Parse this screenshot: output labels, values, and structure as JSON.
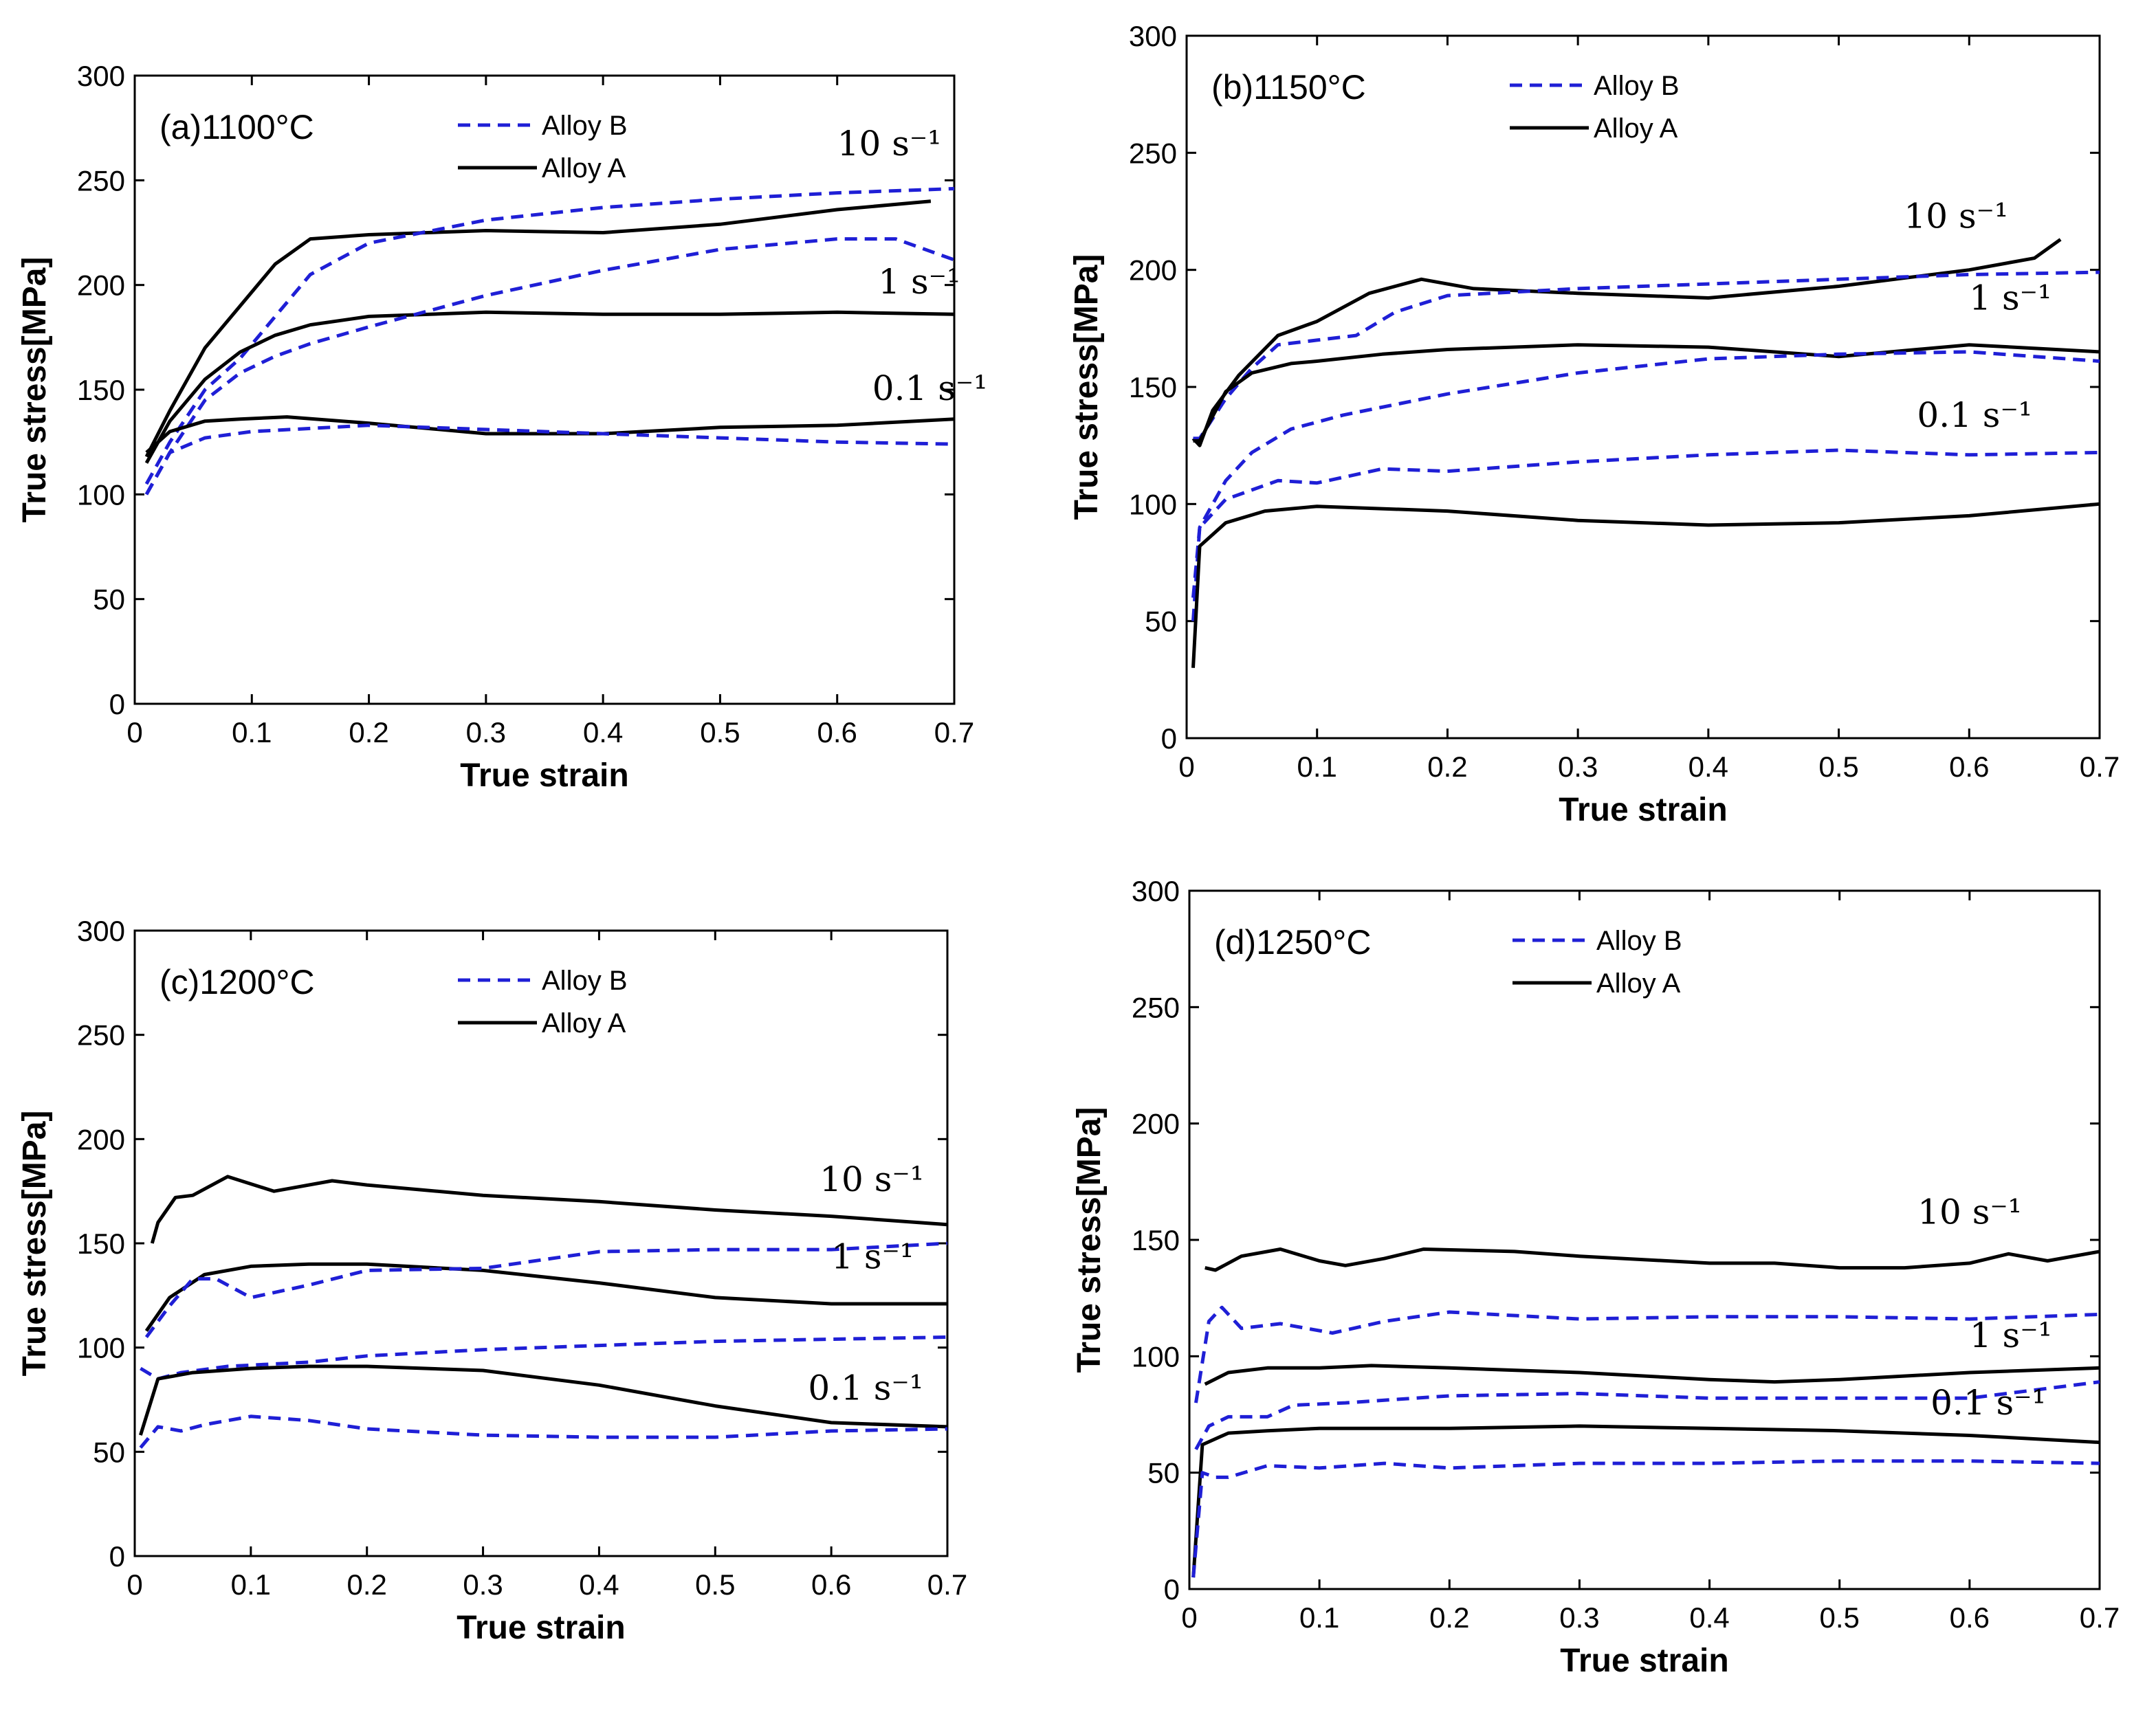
{
  "chart_data": [
    {
      "type": "line",
      "title": "(a)1100°C",
      "xlabel": "True strain",
      "ylabel": "True stress[MPa]",
      "xlim": [
        0,
        0.7
      ],
      "ylim": [
        0,
        300
      ],
      "xticks": [
        "0",
        "0.1",
        "0.2",
        "0.3",
        "0.4",
        "0.5",
        "0.6",
        "0.7"
      ],
      "yticks": [
        "0",
        "50",
        "100",
        "150",
        "200",
        "250",
        "300"
      ],
      "legend": [
        {
          "name": "Alloy B",
          "style": "dashed",
          "color": "#1f1fd6"
        },
        {
          "name": "Alloy A",
          "style": "solid",
          "color": "#000000"
        }
      ],
      "rate_labels": [
        {
          "text": "10 s⁻¹",
          "x": 0.6,
          "y": 262
        },
        {
          "text": "1 s⁻¹",
          "x": 0.635,
          "y": 196
        },
        {
          "text": "0.1 s⁻¹",
          "x": 0.63,
          "y": 145
        }
      ],
      "series": [
        {
          "name": "Alloy A",
          "rate": "10 s⁻¹",
          "x": [
            0.01,
            0.03,
            0.06,
            0.09,
            0.12,
            0.15,
            0.2,
            0.3,
            0.4,
            0.5,
            0.6,
            0.68
          ],
          "y": [
            118,
            140,
            170,
            190,
            210,
            222,
            224,
            226,
            225,
            229,
            236,
            240
          ]
        },
        {
          "name": "Alloy B",
          "rate": "10 s⁻¹",
          "x": [
            0.01,
            0.03,
            0.06,
            0.09,
            0.12,
            0.15,
            0.2,
            0.3,
            0.4,
            0.5,
            0.6,
            0.7
          ],
          "y": [
            105,
            125,
            150,
            165,
            185,
            205,
            220,
            231,
            237,
            241,
            244,
            246
          ]
        },
        {
          "name": "Alloy A",
          "rate": "1 s⁻¹",
          "x": [
            0.01,
            0.03,
            0.06,
            0.09,
            0.12,
            0.15,
            0.2,
            0.3,
            0.4,
            0.5,
            0.6,
            0.7
          ],
          "y": [
            115,
            135,
            155,
            168,
            176,
            181,
            185,
            187,
            186,
            186,
            187,
            186
          ]
        },
        {
          "name": "Alloy B",
          "rate": "1 s⁻¹",
          "x": [
            0.01,
            0.03,
            0.06,
            0.09,
            0.12,
            0.15,
            0.2,
            0.3,
            0.4,
            0.5,
            0.6,
            0.65,
            0.7
          ],
          "y": [
            100,
            120,
            145,
            158,
            166,
            172,
            180,
            195,
            207,
            217,
            222,
            222,
            212
          ]
        },
        {
          "name": "Alloy A",
          "rate": "0.1 s⁻¹",
          "x": [
            0.01,
            0.03,
            0.06,
            0.09,
            0.13,
            0.2,
            0.3,
            0.4,
            0.5,
            0.6,
            0.7
          ],
          "y": [
            120,
            130,
            135,
            136,
            137,
            134,
            129,
            129,
            132,
            133,
            136
          ]
        },
        {
          "name": "Alloy B",
          "rate": "0.1 s⁻¹",
          "x": [
            0.01,
            0.03,
            0.06,
            0.1,
            0.2,
            0.3,
            0.4,
            0.5,
            0.6,
            0.7
          ],
          "y": [
            100,
            120,
            127,
            130,
            133,
            131,
            129,
            127,
            125,
            124
          ]
        }
      ]
    },
    {
      "type": "line",
      "title": "(b)1150°C",
      "xlabel": "True strain",
      "ylabel": "True stress[MPa]",
      "xlim": [
        0,
        0.7
      ],
      "ylim": [
        0,
        300
      ],
      "xticks": [
        "0",
        "0.1",
        "0.2",
        "0.3",
        "0.4",
        "0.5",
        "0.6",
        "0.7"
      ],
      "yticks": [
        "0",
        "50",
        "100",
        "150",
        "200",
        "250",
        "300"
      ],
      "legend": [
        {
          "name": "Alloy B",
          "style": "dashed",
          "color": "#1f1fd6"
        },
        {
          "name": "Alloy A",
          "style": "solid",
          "color": "#000000"
        }
      ],
      "rate_labels": [
        {
          "text": "10 s⁻¹",
          "x": 0.55,
          "y": 218
        },
        {
          "text": "1 s⁻¹",
          "x": 0.6,
          "y": 183
        },
        {
          "text": "0.1 s⁻¹",
          "x": 0.56,
          "y": 133
        }
      ],
      "series": [
        {
          "name": "Alloy A",
          "rate": "10 s⁻¹",
          "x": [
            0.005,
            0.01,
            0.02,
            0.04,
            0.07,
            0.1,
            0.14,
            0.18,
            0.22,
            0.3,
            0.4,
            0.5,
            0.6,
            0.65,
            0.67
          ],
          "y": [
            128,
            125,
            140,
            155,
            172,
            178,
            190,
            196,
            192,
            190,
            188,
            193,
            200,
            205,
            213
          ]
        },
        {
          "name": "Alloy B",
          "rate": "10 s⁻¹",
          "x": [
            0.005,
            0.01,
            0.03,
            0.05,
            0.07,
            0.1,
            0.13,
            0.16,
            0.2,
            0.3,
            0.4,
            0.5,
            0.6,
            0.7
          ],
          "y": [
            128,
            128,
            145,
            158,
            168,
            170,
            172,
            182,
            189,
            192,
            194,
            196,
            198,
            199
          ]
        },
        {
          "name": "Alloy A",
          "rate": "1 s⁻¹",
          "x": [
            0.005,
            0.01,
            0.03,
            0.05,
            0.08,
            0.1,
            0.15,
            0.2,
            0.3,
            0.4,
            0.5,
            0.6,
            0.7
          ],
          "y": [
            127,
            127,
            148,
            156,
            160,
            161,
            164,
            166,
            168,
            167,
            163,
            168,
            165
          ]
        },
        {
          "name": "Alloy B",
          "rate": "1 s⁻¹",
          "x": [
            0.005,
            0.01,
            0.03,
            0.05,
            0.08,
            0.12,
            0.2,
            0.3,
            0.4,
            0.5,
            0.6,
            0.7
          ],
          "y": [
            60,
            90,
            110,
            122,
            132,
            138,
            147,
            156,
            162,
            164,
            165,
            161
          ]
        },
        {
          "name": "Alloy B",
          "rate": "0.1 s⁻¹",
          "x": [
            0.005,
            0.01,
            0.03,
            0.05,
            0.07,
            0.1,
            0.15,
            0.2,
            0.3,
            0.4,
            0.5,
            0.6,
            0.7
          ],
          "y": [
            50,
            90,
            102,
            106,
            110,
            109,
            115,
            114,
            118,
            121,
            123,
            121,
            122
          ]
        },
        {
          "name": "Alloy A",
          "rate": "0.1 s⁻¹",
          "x": [
            0.005,
            0.01,
            0.03,
            0.06,
            0.1,
            0.2,
            0.3,
            0.4,
            0.5,
            0.6,
            0.7
          ],
          "y": [
            30,
            82,
            92,
            97,
            99,
            97,
            93,
            91,
            92,
            95,
            100
          ]
        }
      ]
    },
    {
      "type": "line",
      "title": "(c)1200°C",
      "xlabel": "True strain",
      "ylabel": "True stress[MPa]",
      "xlim": [
        0,
        0.7
      ],
      "ylim": [
        0,
        300
      ],
      "xticks": [
        "0",
        "0.1",
        "0.2",
        "0.3",
        "0.4",
        "0.5",
        "0.6",
        "0.7"
      ],
      "yticks": [
        "0",
        "50",
        "100",
        "150",
        "200",
        "250",
        "300"
      ],
      "legend": [
        {
          "name": "Alloy B",
          "style": "dashed",
          "color": "#1f1fd6"
        },
        {
          "name": "Alloy A",
          "style": "solid",
          "color": "#000000"
        }
      ],
      "rate_labels": [
        {
          "text": "10 s⁻¹",
          "x": 0.59,
          "y": 175
        },
        {
          "text": "1 s⁻¹",
          "x": 0.6,
          "y": 138
        },
        {
          "text": "0.1 s⁻¹",
          "x": 0.58,
          "y": 75
        }
      ],
      "series": [
        {
          "name": "Alloy A",
          "rate": "10 s⁻¹",
          "x": [
            0.015,
            0.02,
            0.035,
            0.05,
            0.08,
            0.12,
            0.17,
            0.2,
            0.3,
            0.4,
            0.5,
            0.6,
            0.7
          ],
          "y": [
            150,
            160,
            172,
            173,
            182,
            175,
            180,
            178,
            173,
            170,
            166,
            163,
            159
          ]
        },
        {
          "name": "Alloy A",
          "rate": "1 s⁻¹",
          "x": [
            0.01,
            0.03,
            0.06,
            0.1,
            0.15,
            0.2,
            0.3,
            0.4,
            0.5,
            0.6,
            0.7
          ],
          "y": [
            108,
            124,
            135,
            139,
            140,
            140,
            137,
            131,
            124,
            121,
            121
          ]
        },
        {
          "name": "Alloy B",
          "rate": "1 s⁻¹",
          "x": [
            0.01,
            0.03,
            0.05,
            0.07,
            0.1,
            0.15,
            0.2,
            0.3,
            0.4,
            0.5,
            0.6,
            0.7
          ],
          "y": [
            105,
            120,
            133,
            133,
            124,
            130,
            137,
            138,
            146,
            147,
            147,
            150
          ]
        },
        {
          "name": "Alloy B",
          "rate": "0.1 s⁻¹",
          "x": [
            0.005,
            0.02,
            0.04,
            0.08,
            0.15,
            0.2,
            0.3,
            0.4,
            0.5,
            0.6,
            0.7
          ],
          "y": [
            90,
            85,
            88,
            91,
            93,
            96,
            99,
            101,
            103,
            104,
            105
          ]
        },
        {
          "name": "Alloy A",
          "rate": "0.1 s⁻¹",
          "x": [
            0.005,
            0.02,
            0.05,
            0.1,
            0.15,
            0.2,
            0.3,
            0.4,
            0.5,
            0.6,
            0.7
          ],
          "y": [
            58,
            85,
            88,
            90,
            91,
            91,
            89,
            82,
            72,
            64,
            62
          ]
        },
        {
          "name": "Alloy B",
          "rate": "0.1 s⁻¹",
          "x": [
            0.005,
            0.02,
            0.04,
            0.06,
            0.1,
            0.15,
            0.2,
            0.3,
            0.4,
            0.5,
            0.6,
            0.7
          ],
          "y": [
            52,
            62,
            60,
            63,
            67,
            65,
            61,
            58,
            57,
            57,
            60,
            61
          ]
        }
      ]
    },
    {
      "type": "line",
      "title": "(d)1250°C",
      "xlabel": "True strain",
      "ylabel": "True stress[MPa]",
      "xlim": [
        0,
        0.7
      ],
      "ylim": [
        0,
        300
      ],
      "xticks": [
        "0",
        "0.1",
        "0.2",
        "0.3",
        "0.4",
        "0.5",
        "0.6",
        "0.7"
      ],
      "yticks": [
        "0",
        "50",
        "100",
        "150",
        "200",
        "250",
        "300"
      ],
      "legend": [
        {
          "name": "Alloy B",
          "style": "dashed",
          "color": "#1f1fd6"
        },
        {
          "name": "Alloy A",
          "style": "solid",
          "color": "#000000"
        }
      ],
      "rate_labels": [
        {
          "text": "10 s⁻¹",
          "x": 0.56,
          "y": 157
        },
        {
          "text": "1 s⁻¹",
          "x": 0.6,
          "y": 104
        },
        {
          "text": "0.1 s⁻¹",
          "x": 0.57,
          "y": 75
        }
      ],
      "series": [
        {
          "name": "Alloy A",
          "rate": "10 s⁻¹",
          "x": [
            0.012,
            0.02,
            0.04,
            0.07,
            0.1,
            0.12,
            0.15,
            0.18,
            0.25,
            0.3,
            0.4,
            0.45,
            0.5,
            0.55,
            0.6,
            0.63,
            0.66,
            0.7
          ],
          "y": [
            138,
            137,
            143,
            146,
            141,
            139,
            142,
            146,
            145,
            143,
            140,
            140,
            138,
            138,
            140,
            144,
            141,
            145
          ]
        },
        {
          "name": "Alloy B",
          "rate": "1 s⁻¹",
          "x": [
            0.005,
            0.015,
            0.025,
            0.04,
            0.07,
            0.11,
            0.15,
            0.2,
            0.3,
            0.4,
            0.5,
            0.6,
            0.7
          ],
          "y": [
            80,
            115,
            121,
            112,
            114,
            110,
            115,
            119,
            116,
            117,
            117,
            116,
            118
          ]
        },
        {
          "name": "Alloy A",
          "rate": "1 s⁻¹",
          "x": [
            0.012,
            0.03,
            0.06,
            0.1,
            0.14,
            0.2,
            0.3,
            0.4,
            0.45,
            0.5,
            0.6,
            0.7
          ],
          "y": [
            88,
            93,
            95,
            95,
            96,
            95,
            93,
            90,
            89,
            90,
            93,
            95
          ]
        },
        {
          "name": "Alloy B",
          "rate": "0.1 s⁻¹",
          "x": [
            0.005,
            0.015,
            0.03,
            0.06,
            0.08,
            0.12,
            0.2,
            0.3,
            0.4,
            0.5,
            0.6,
            0.7
          ],
          "y": [
            60,
            70,
            74,
            74,
            79,
            80,
            83,
            84,
            82,
            82,
            82,
            89
          ]
        },
        {
          "name": "Alloy A",
          "rate": "0.1 s⁻¹",
          "x": [
            0.003,
            0.01,
            0.03,
            0.06,
            0.1,
            0.2,
            0.3,
            0.4,
            0.5,
            0.6,
            0.7
          ],
          "y": [
            5,
            62,
            67,
            68,
            69,
            69,
            70,
            69,
            68,
            66,
            63
          ]
        },
        {
          "name": "Alloy B",
          "rate": "0.1 s⁻¹",
          "x": [
            0.003,
            0.01,
            0.02,
            0.03,
            0.06,
            0.1,
            0.15,
            0.2,
            0.3,
            0.4,
            0.5,
            0.6,
            0.7
          ],
          "y": [
            5,
            50,
            48,
            48,
            53,
            52,
            54,
            52,
            54,
            54,
            55,
            55,
            54
          ]
        }
      ]
    }
  ]
}
